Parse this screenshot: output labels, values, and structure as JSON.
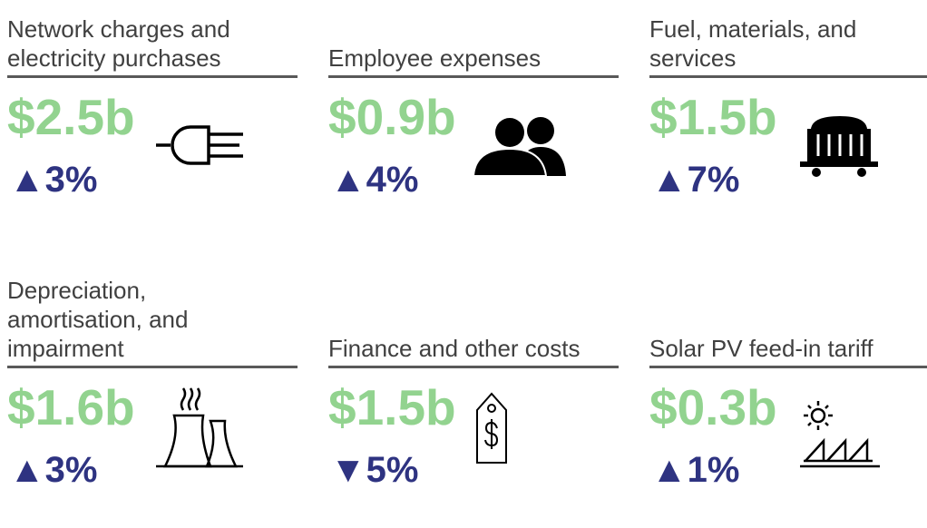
{
  "cards": [
    {
      "title": "Network charges and electricity purchases",
      "amount": "$2.5b",
      "change": "▲3%"
    },
    {
      "title": "Employee expenses",
      "amount": "$0.9b",
      "change": "▲4%"
    },
    {
      "title": "Fuel, materials, and services",
      "amount": "$1.5b",
      "change": "▲7%"
    },
    {
      "title": "Depreciation, amortisation, and impairment",
      "amount": "$1.6b",
      "change": "▲3%"
    },
    {
      "title": "Finance and other costs",
      "amount": "$1.5b",
      "change": "▼5%"
    },
    {
      "title": "Solar PV feed-in tariff",
      "amount": "$0.3b",
      "change": "▲1%"
    }
  ]
}
